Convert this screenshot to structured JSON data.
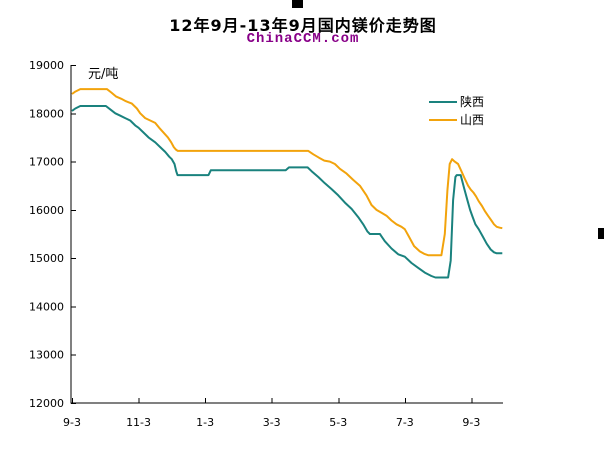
{
  "header": {
    "title": "12年9月-13年9月国内镁价走势图",
    "watermark": "ChinaCCM.com",
    "watermark_color": "#880088"
  },
  "decorations": {
    "top_marker": "black-square-marker",
    "right_marker": "black-square-marker"
  },
  "chart_data": {
    "type": "line",
    "title": "12年9月-13年9月国内镁价走势图",
    "unit_label": "元/吨",
    "xlabel": "",
    "ylabel": "元/吨",
    "ylim": [
      12000,
      19000
    ],
    "y_ticks": [
      12000,
      13000,
      14000,
      15000,
      16000,
      17000,
      18000,
      19000
    ],
    "x_tick_labels": [
      "9-3",
      "11-3",
      "1-3",
      "3-3",
      "5-3",
      "7-3",
      "9-3"
    ],
    "x_tick_months": [
      0,
      2,
      4,
      6,
      8,
      10,
      12
    ],
    "xlim": [
      -0.03,
      12.95
    ],
    "grid": false,
    "legend_position": "top-right",
    "axis_color": "#000000",
    "x_unit": "months_since_2012-09-03",
    "series": [
      {
        "name": "陕西",
        "color": "#1A827E",
        "points": [
          [
            0.0,
            18050
          ],
          [
            0.1,
            18100
          ],
          [
            0.25,
            18150
          ],
          [
            1.02,
            18150
          ],
          [
            1.15,
            18080
          ],
          [
            1.3,
            18000
          ],
          [
            1.45,
            17950
          ],
          [
            1.6,
            17900
          ],
          [
            1.75,
            17850
          ],
          [
            1.9,
            17750
          ],
          [
            2.0,
            17700
          ],
          [
            2.15,
            17600
          ],
          [
            2.3,
            17500
          ],
          [
            2.5,
            17400
          ],
          [
            2.65,
            17300
          ],
          [
            2.8,
            17200
          ],
          [
            2.92,
            17100
          ],
          [
            3.0,
            17050
          ],
          [
            3.08,
            16950
          ],
          [
            3.13,
            16800
          ],
          [
            3.17,
            16720
          ],
          [
            4.1,
            16720
          ],
          [
            4.17,
            16820
          ],
          [
            6.42,
            16820
          ],
          [
            6.52,
            16880
          ],
          [
            7.08,
            16880
          ],
          [
            7.2,
            16800
          ],
          [
            7.4,
            16680
          ],
          [
            7.6,
            16550
          ],
          [
            7.8,
            16430
          ],
          [
            8.0,
            16300
          ],
          [
            8.2,
            16150
          ],
          [
            8.4,
            16020
          ],
          [
            8.6,
            15850
          ],
          [
            8.75,
            15700
          ],
          [
            8.88,
            15550
          ],
          [
            8.95,
            15500
          ],
          [
            9.25,
            15500
          ],
          [
            9.4,
            15350
          ],
          [
            9.6,
            15200
          ],
          [
            9.8,
            15080
          ],
          [
            10.0,
            15030
          ],
          [
            10.2,
            14900
          ],
          [
            10.4,
            14800
          ],
          [
            10.6,
            14700
          ],
          [
            10.8,
            14630
          ],
          [
            10.92,
            14600
          ],
          [
            11.3,
            14600
          ],
          [
            11.38,
            14950
          ],
          [
            11.45,
            16200
          ],
          [
            11.52,
            16680
          ],
          [
            11.56,
            16720
          ],
          [
            11.68,
            16720
          ],
          [
            11.78,
            16450
          ],
          [
            11.88,
            16200
          ],
          [
            11.96,
            16000
          ],
          [
            12.04,
            15850
          ],
          [
            12.12,
            15700
          ],
          [
            12.22,
            15600
          ],
          [
            12.34,
            15450
          ],
          [
            12.46,
            15300
          ],
          [
            12.58,
            15180
          ],
          [
            12.68,
            15120
          ],
          [
            12.76,
            15100
          ],
          [
            12.93,
            15100
          ]
        ]
      },
      {
        "name": "山西",
        "color": "#F2A30C",
        "points": [
          [
            0.0,
            18400
          ],
          [
            0.1,
            18450
          ],
          [
            0.25,
            18500
          ],
          [
            1.05,
            18500
          ],
          [
            1.18,
            18430
          ],
          [
            1.32,
            18350
          ],
          [
            1.48,
            18300
          ],
          [
            1.62,
            18250
          ],
          [
            1.8,
            18200
          ],
          [
            1.95,
            18100
          ],
          [
            2.05,
            18000
          ],
          [
            2.2,
            17900
          ],
          [
            2.35,
            17850
          ],
          [
            2.5,
            17800
          ],
          [
            2.62,
            17700
          ],
          [
            2.75,
            17600
          ],
          [
            2.88,
            17500
          ],
          [
            2.98,
            17400
          ],
          [
            3.06,
            17300
          ],
          [
            3.12,
            17250
          ],
          [
            3.18,
            17220
          ],
          [
            7.1,
            17220
          ],
          [
            7.25,
            17150
          ],
          [
            7.42,
            17080
          ],
          [
            7.58,
            17020
          ],
          [
            7.75,
            17000
          ],
          [
            7.9,
            16950
          ],
          [
            8.05,
            16850
          ],
          [
            8.25,
            16750
          ],
          [
            8.45,
            16620
          ],
          [
            8.65,
            16500
          ],
          [
            8.85,
            16300
          ],
          [
            9.0,
            16100
          ],
          [
            9.15,
            16000
          ],
          [
            9.3,
            15940
          ],
          [
            9.45,
            15880
          ],
          [
            9.6,
            15780
          ],
          [
            9.75,
            15700
          ],
          [
            9.9,
            15650
          ],
          [
            10.0,
            15600
          ],
          [
            10.12,
            15450
          ],
          [
            10.28,
            15250
          ],
          [
            10.45,
            15140
          ],
          [
            10.58,
            15090
          ],
          [
            10.7,
            15060
          ],
          [
            11.1,
            15060
          ],
          [
            11.2,
            15500
          ],
          [
            11.28,
            16400
          ],
          [
            11.35,
            16950
          ],
          [
            11.42,
            17050
          ],
          [
            11.5,
            17000
          ],
          [
            11.6,
            16950
          ],
          [
            11.7,
            16800
          ],
          [
            11.8,
            16650
          ],
          [
            11.9,
            16500
          ],
          [
            11.98,
            16420
          ],
          [
            12.06,
            16360
          ],
          [
            12.14,
            16280
          ],
          [
            12.22,
            16180
          ],
          [
            12.32,
            16080
          ],
          [
            12.4,
            15980
          ],
          [
            12.5,
            15880
          ],
          [
            12.6,
            15780
          ],
          [
            12.68,
            15700
          ],
          [
            12.76,
            15650
          ],
          [
            12.85,
            15630
          ],
          [
            12.93,
            15620
          ]
        ]
      }
    ]
  }
}
